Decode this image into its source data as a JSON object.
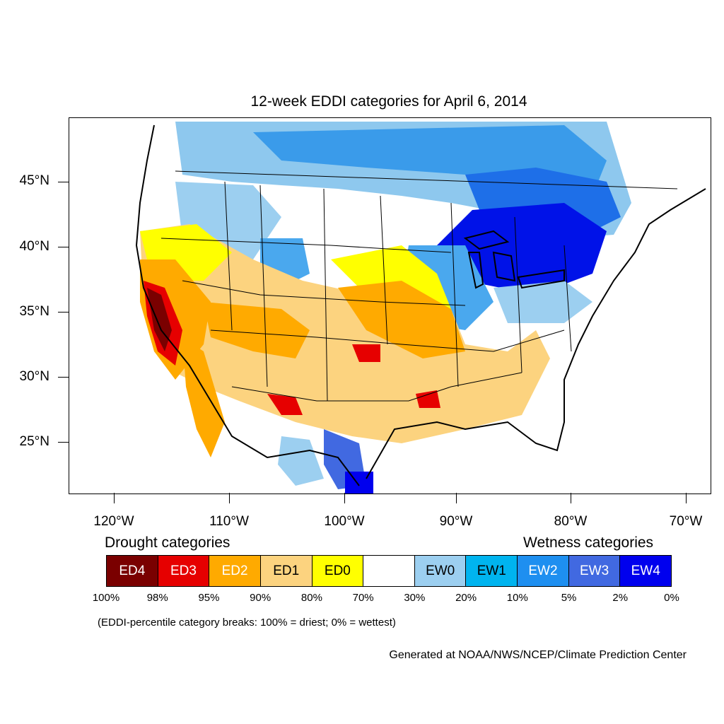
{
  "title": "12-week EDDI categories for April 6, 2014",
  "axes": {
    "lat_labels": [
      "45°N",
      "40°N",
      "35°N",
      "30°N",
      "25°N"
    ],
    "lon_labels": [
      "120°W",
      "110°W",
      "100°W",
      "90°W",
      "80°W",
      "70°W"
    ]
  },
  "legend": {
    "drought_heading": "Drought categories",
    "wetness_heading": "Wetness categories",
    "categories": [
      {
        "label": "ED4",
        "color": "#7a0000",
        "text_color": "#ffffff"
      },
      {
        "label": "ED3",
        "color": "#e60000",
        "text_color": "#ffffff"
      },
      {
        "label": "ED2",
        "color": "#ffaa00",
        "text_color": "#ffffff"
      },
      {
        "label": "ED1",
        "color": "#fcd37f",
        "text_color": "#000000"
      },
      {
        "label": "ED0",
        "color": "#ffff00",
        "text_color": "#000000"
      },
      {
        "label": "",
        "color": "#ffffff",
        "text_color": "#000000"
      },
      {
        "label": "EW0",
        "color": "#9ccff0",
        "text_color": "#000000"
      },
      {
        "label": "EW1",
        "color": "#00b4ef",
        "text_color": "#000000"
      },
      {
        "label": "EW2",
        "color": "#1e8ff0",
        "text_color": "#ffffff"
      },
      {
        "label": "EW3",
        "color": "#4169e1",
        "text_color": "#ffffff"
      },
      {
        "label": "EW4",
        "color": "#0000ee",
        "text_color": "#ffffff"
      }
    ],
    "percentiles": [
      "100%",
      "98%",
      "95%",
      "90%",
      "80%",
      "70%",
      "30%",
      "20%",
      "10%",
      "5%",
      "2%",
      "0%"
    ]
  },
  "footnote": "(EDDI-percentile category breaks: 100% = driest; 0% = wettest)",
  "credit": "Generated at NOAA/NWS/NCEP/Climate Prediction Center"
}
